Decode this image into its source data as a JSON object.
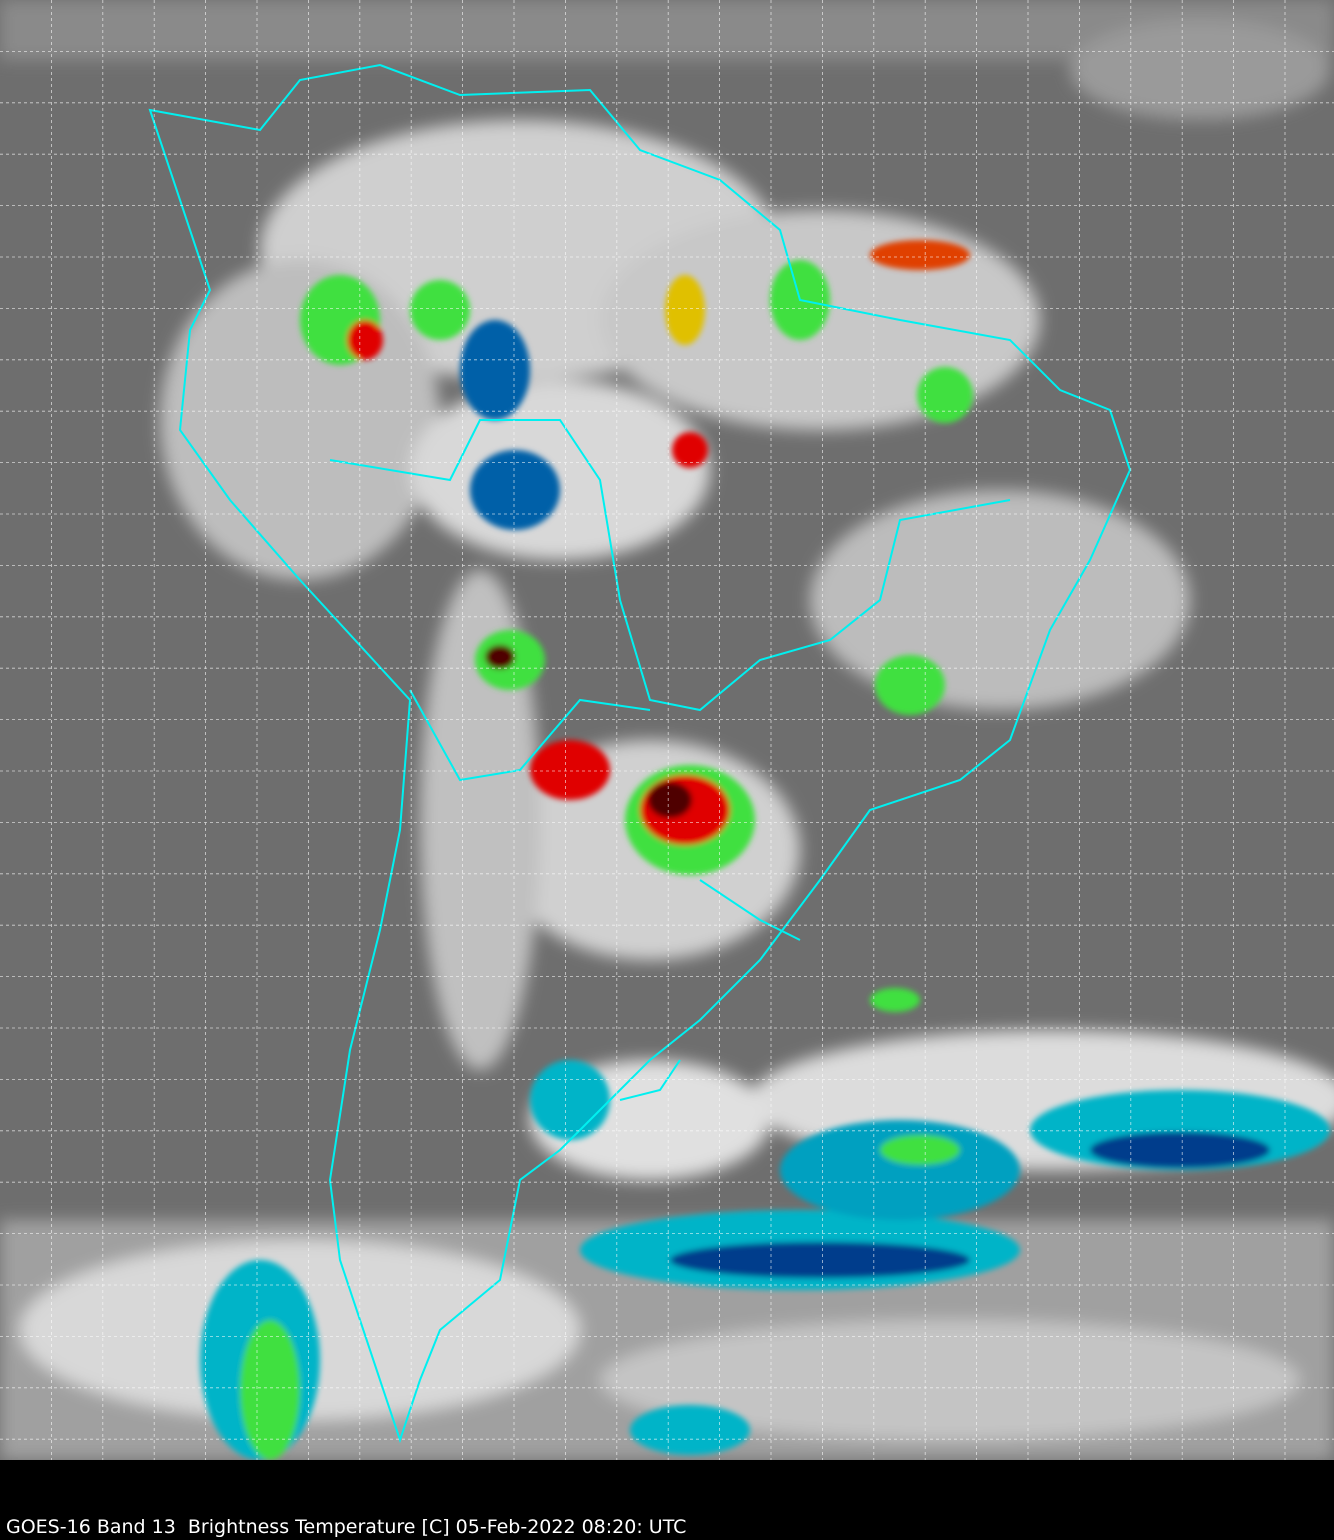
{
  "caption": "GOES-16 Band 13  Brightness Temperature [C] 05-Feb-2022 08:20: UTC",
  "colors": {
    "background_ocean": "#6e6e6e",
    "cloud_white": "#f0f0f0",
    "coastline": "#00f0f0",
    "grid": "#ffffff",
    "cold_cyan": "#00c8d8",
    "cold_blue": "#003c8c",
    "cold_green": "#40e040",
    "cold_yellow": "#f0f000",
    "cold_red": "#e00000",
    "cold_darkred": "#500000"
  },
  "grid": "dashed lat/lon lines"
}
